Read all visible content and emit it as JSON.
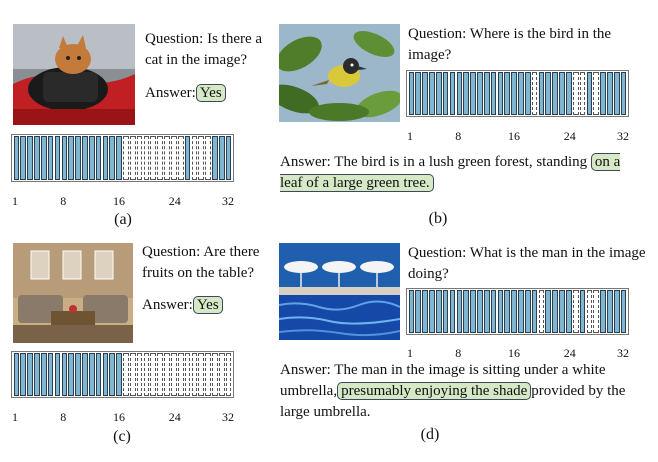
{
  "panels": [
    {
      "caption": "(a)",
      "question": "Question: Is there a cat in the image?",
      "answer_label": "Answer:",
      "answer_highlight": "Yes",
      "photo": "cat sitting on red motorcycle with black bag",
      "attention": [
        1,
        1,
        1,
        1,
        1,
        1,
        1,
        1,
        1,
        1,
        1,
        1,
        1,
        1,
        1,
        1,
        0,
        0,
        0,
        0,
        0,
        0,
        0,
        0,
        0,
        1,
        0,
        0,
        0,
        1,
        1,
        1
      ]
    },
    {
      "caption": "(b)",
      "question": "Question: Where is the bird in the image?",
      "answer_pre": "Answer: The bird is in a lush green forest, standing",
      "answer_highlight": "on a leaf of a large green tree.",
      "photo": "yellow bird perched on green leaves",
      "attention": [
        1,
        1,
        1,
        1,
        1,
        1,
        1,
        1,
        1,
        1,
        1,
        1,
        1,
        1,
        1,
        1,
        1,
        1,
        0,
        1,
        1,
        1,
        1,
        1,
        0,
        0,
        1,
        0,
        1,
        1,
        1,
        1
      ]
    },
    {
      "caption": "(c)",
      "question": "Question: Are there fruits on the table?",
      "answer_label": "Answer:",
      "answer_highlight": "Yes",
      "photo": "living room with sofas and table",
      "attention": [
        1,
        1,
        1,
        1,
        1,
        1,
        1,
        1,
        1,
        1,
        1,
        1,
        1,
        1,
        1,
        1,
        0,
        0,
        0,
        0,
        0,
        0,
        0,
        0,
        0,
        0,
        0,
        0,
        0,
        0,
        0,
        0
      ]
    },
    {
      "caption": "(d)",
      "question": "Question: What is the man in the image doing?",
      "answer_pre": "Answer: The man in the image is sitting under a white umbrella,",
      "answer_highlight": "presumably enjoying the shade",
      "answer_post": "provided by the large umbrella.",
      "photo": "pool with white umbrellas under blue sky",
      "attention": [
        1,
        1,
        1,
        1,
        1,
        1,
        1,
        1,
        1,
        1,
        1,
        1,
        1,
        1,
        1,
        1,
        1,
        1,
        1,
        0,
        1,
        1,
        1,
        1,
        0,
        1,
        0,
        0,
        1,
        1,
        1,
        1
      ]
    }
  ],
  "ticks": [
    "1",
    "8",
    "16",
    "24",
    "32"
  ],
  "colors": {
    "on": "#7fb6d2",
    "highlight": "#d6e8c6"
  }
}
